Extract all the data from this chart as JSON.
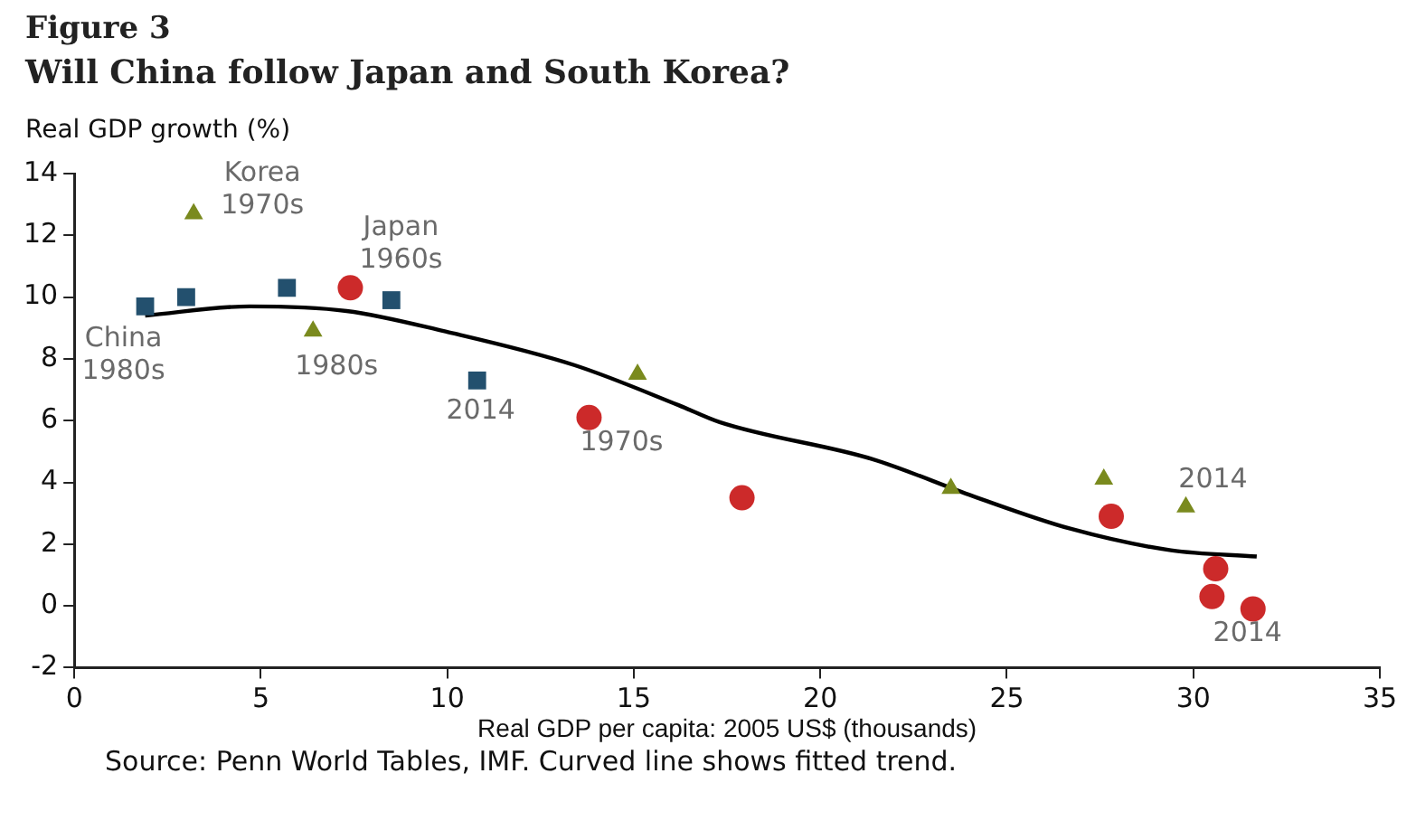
{
  "chart_data": {
    "type": "scatter",
    "title": "Figure 3",
    "subtitle": "Will China follow Japan and South Korea?",
    "ylabel": "Real GDP growth (%)",
    "xlabel": "Real GDP per capita: 2005 US$ (thousands)",
    "xlim": [
      0,
      35
    ],
    "xticks": [
      0,
      5,
      10,
      15,
      20,
      25,
      30,
      35
    ],
    "ylim": [
      -2,
      14
    ],
    "yticks": [
      -2,
      0,
      2,
      4,
      6,
      8,
      10,
      12,
      14
    ],
    "grid": false,
    "legend": false,
    "series": [
      {
        "color": "#23506e",
        "marker": "square",
        "x": [
          1.9,
          3.0,
          5.7,
          8.5,
          10.8
        ],
        "values": [
          9.7,
          10.0,
          10.3,
          9.9,
          7.3
        ]
      },
      {
        "color": "#7a8a1e",
        "marker": "triangle",
        "x": [
          3.2,
          6.4,
          15.1,
          23.5,
          27.6,
          29.8
        ],
        "values": [
          12.7,
          8.9,
          7.5,
          3.8,
          4.1,
          3.2
        ]
      },
      {
        "color": "#cc2a2a",
        "marker": "circle",
        "x": [
          7.4,
          13.8,
          17.9,
          27.8,
          30.6,
          30.5,
          31.6
        ],
        "values": [
          10.3,
          6.1,
          3.5,
          2.9,
          1.2,
          0.3,
          -0.1
        ]
      },
      {
        "type": "line",
        "color": "#000000",
        "marker": "none",
        "x": [
          1.9,
          4.7,
          7.3,
          9.9,
          13.4,
          16.2,
          17.3,
          21.4,
          24.1,
          26.7,
          29.4,
          31.7
        ],
        "values": [
          9.4,
          9.7,
          9.55,
          8.9,
          7.8,
          6.5,
          5.95,
          4.75,
          3.55,
          2.5,
          1.8,
          1.6
        ]
      }
    ],
    "annotations": [
      {
        "text": "Korea\n1970s",
        "x": 3.2,
        "y": 12.7
      },
      {
        "text": "Japan\n1960s",
        "x": 7.4,
        "y": 10.3
      },
      {
        "text": "China\n1980s",
        "x": 1.9,
        "y": 9.7
      },
      {
        "text": "1980s",
        "x": 6.4,
        "y": 8.9
      },
      {
        "text": "2014",
        "x": 10.8,
        "y": 7.3
      },
      {
        "text": "1970s",
        "x": 13.8,
        "y": 6.1
      },
      {
        "text": "2014",
        "x": 29.8,
        "y": 3.2
      },
      {
        "text": "2014",
        "x": 31.6,
        "y": -0.1
      },
      "Source: Penn World Tables, IMF. Curved line shows fitted trend."
    ]
  }
}
